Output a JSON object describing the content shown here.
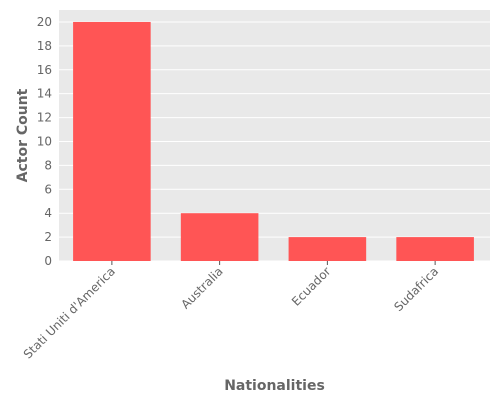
{
  "chart_data": {
    "type": "bar",
    "categories": [
      "Stati Uniti d'America",
      "Australia",
      "Ecuador",
      "Sudafrica"
    ],
    "values": [
      20,
      4,
      2,
      2
    ],
    "title": "",
    "xlabel": "Nationalities",
    "ylabel": "Actor Count",
    "ylim": [
      0,
      21
    ],
    "yticks": [
      0,
      2,
      4,
      6,
      8,
      10,
      12,
      14,
      16,
      18,
      20
    ],
    "grid": true,
    "colors": {
      "bar": "#ff5555",
      "background": "#e9e9e9",
      "grid": "#ffffff",
      "text": "#666666"
    }
  }
}
